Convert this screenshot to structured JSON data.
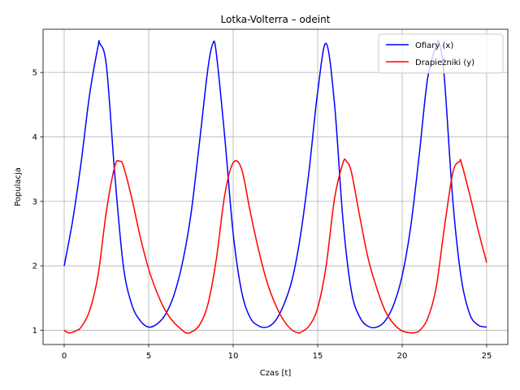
{
  "chart_data": {
    "type": "line",
    "title": "Lotka-Volterra – odeint",
    "xlabel": "Czas [t]",
    "ylabel": "Populacja",
    "xlim": [
      -1.25,
      26.25
    ],
    "ylim": [
      0.78,
      5.67
    ],
    "xticks": [
      0,
      5,
      10,
      15,
      20,
      25
    ],
    "yticks": [
      1,
      2,
      3,
      4,
      5
    ],
    "grid": true,
    "legend_position": "top-right",
    "series": [
      {
        "name": "Ofiary (x)",
        "color": "#0000ff",
        "x": [
          0,
          0.5,
          1,
          1.5,
          2,
          2.1,
          2.5,
          3,
          3.5,
          4,
          4.5,
          5,
          5.5,
          6,
          6.5,
          7,
          7.5,
          8,
          8.5,
          8.8,
          9,
          9.5,
          10,
          10.5,
          11,
          11.5,
          12,
          12.5,
          13,
          13.5,
          14,
          14.5,
          15,
          15.5,
          16,
          16.5,
          17,
          17.5,
          18,
          18.5,
          19,
          19.5,
          20,
          20.5,
          21,
          21.5,
          22,
          22.2,
          22.5,
          23,
          23.5,
          24,
          24.5,
          25
        ],
        "y": [
          2.0,
          2.7,
          3.6,
          4.65,
          5.4,
          5.45,
          5.1,
          3.4,
          2.0,
          1.4,
          1.15,
          1.05,
          1.1,
          1.25,
          1.55,
          2.05,
          2.8,
          3.9,
          5.05,
          5.45,
          5.3,
          4.0,
          2.5,
          1.6,
          1.2,
          1.07,
          1.05,
          1.15,
          1.4,
          1.8,
          2.5,
          3.5,
          4.7,
          5.45,
          4.5,
          2.7,
          1.6,
          1.2,
          1.06,
          1.05,
          1.15,
          1.4,
          1.85,
          2.6,
          3.7,
          4.9,
          5.4,
          5.45,
          4.9,
          3.0,
          1.8,
          1.25,
          1.08,
          1.05
        ]
      },
      {
        "name": "Drapieżniki (y)",
        "color": "#ff0000",
        "x": [
          0,
          0.25,
          0.5,
          0.75,
          1,
          1.5,
          2,
          2.5,
          3,
          3.3,
          3.5,
          4,
          4.5,
          5,
          5.5,
          6,
          6.5,
          7,
          7.2,
          7.5,
          8,
          8.5,
          9,
          9.5,
          10,
          10.5,
          11,
          11.5,
          12,
          12.5,
          13,
          13.5,
          13.9,
          14,
          14.5,
          15,
          15.5,
          16,
          16.5,
          16.7,
          17,
          17.5,
          18,
          18.5,
          19,
          19.5,
          20,
          20.5,
          20.6,
          21,
          21.5,
          22,
          22.5,
          23,
          23.4,
          23.5,
          24,
          24.5,
          25
        ],
        "y": [
          1.0,
          0.96,
          0.97,
          1.0,
          1.05,
          1.3,
          1.85,
          2.85,
          3.55,
          3.62,
          3.55,
          3.05,
          2.45,
          1.95,
          1.58,
          1.3,
          1.12,
          1.0,
          0.96,
          0.97,
          1.08,
          1.4,
          2.1,
          3.1,
          3.6,
          3.5,
          2.85,
          2.25,
          1.75,
          1.4,
          1.15,
          1.0,
          0.96,
          0.97,
          1.07,
          1.35,
          2.0,
          3.05,
          3.6,
          3.62,
          3.45,
          2.75,
          2.1,
          1.65,
          1.3,
          1.1,
          0.99,
          0.96,
          0.96,
          0.99,
          1.18,
          1.65,
          2.6,
          3.45,
          3.62,
          3.6,
          3.1,
          2.55,
          2.05
        ]
      }
    ]
  }
}
